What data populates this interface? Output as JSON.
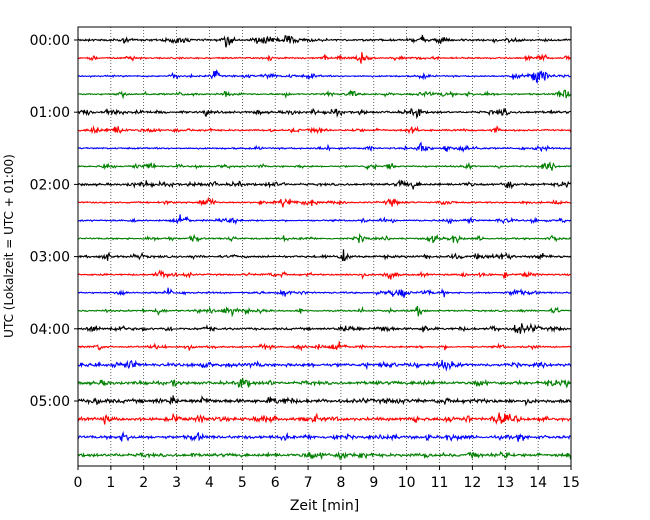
{
  "chart_data": {
    "type": "line",
    "title": "",
    "xlabel": "Zeit  [min]",
    "ylabel": "UTC (Lokalzeit = UTC + 01:00)",
    "xlim": [
      0,
      15
    ],
    "x_ticks": [
      "0",
      "1",
      "2",
      "3",
      "4",
      "5",
      "6",
      "7",
      "8",
      "9",
      "10",
      "11",
      "12",
      "13",
      "14",
      "15"
    ],
    "y_ticks": [
      "00:00",
      "01:00",
      "02:00",
      "03:00",
      "04:00",
      "05:00"
    ],
    "grid": "vertical dotted at each minute",
    "rows_per_hour": 4,
    "trace_colors": [
      "#000000",
      "#ff0000",
      "#0000ff",
      "#008000"
    ],
    "traces": [
      {
        "start": "00:00"
      },
      {
        "start": "00:15"
      },
      {
        "start": "00:30"
      },
      {
        "start": "00:45"
      },
      {
        "start": "01:00"
      },
      {
        "start": "01:15"
      },
      {
        "start": "01:30"
      },
      {
        "start": "01:45"
      },
      {
        "start": "02:00"
      },
      {
        "start": "02:15"
      },
      {
        "start": "02:30"
      },
      {
        "start": "02:45"
      },
      {
        "start": "03:00"
      },
      {
        "start": "03:15"
      },
      {
        "start": "03:30"
      },
      {
        "start": "03:45"
      },
      {
        "start": "04:00"
      },
      {
        "start": "04:15"
      },
      {
        "start": "04:30"
      },
      {
        "start": "04:45"
      },
      {
        "start": "05:00"
      },
      {
        "start": "05:15"
      },
      {
        "start": "05:30"
      },
      {
        "start": "05:45"
      }
    ]
  }
}
